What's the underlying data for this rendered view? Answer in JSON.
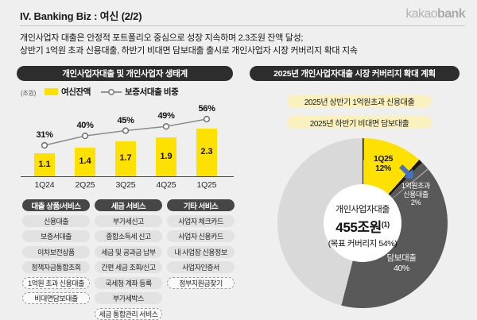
{
  "header": {
    "title": "IV. Banking Biz : 여신 (2/2)",
    "logo": {
      "kakao": "kakao",
      "bank": "bank"
    }
  },
  "intro": {
    "line1": "개인사업자 대출은 안정적 포트폴리오 중심으로 성장 지속하며 2.3조원 잔액 달성;",
    "line2": "상반기 1억원 초과 신용대출, 하반기 비대면 담보대출 출시로 개인사업자 시장 커버리지 확대 지속"
  },
  "left_panel": {
    "title": "개인사업자대출 및 개인사업자 생태계",
    "unit_label": "(조원)",
    "legend": {
      "bar": "여신잔액",
      "line": "보증서대출 비중"
    },
    "services": {
      "columns": [
        {
          "header": "대출 상품/서비스",
          "items": [
            {
              "label": "신용대출",
              "dashed": false
            },
            {
              "label": "보증서대출",
              "dashed": false
            },
            {
              "label": "이차보전상품",
              "dashed": false
            },
            {
              "label": "정책자금통합조회",
              "dashed": false
            },
            {
              "label": "1억원 초과 신용대출",
              "dashed": true
            },
            {
              "label": "비대면담보대출",
              "dashed": true
            }
          ]
        },
        {
          "header": "세금 서비스",
          "items": [
            {
              "label": "부가세신고",
              "dashed": false
            },
            {
              "label": "종합소득세 신고",
              "dashed": false
            },
            {
              "label": "세금 및 공과금 납부",
              "dashed": false
            },
            {
              "label": "간편 세금 조회/신고",
              "dashed": false
            },
            {
              "label": "국세청 계좌 등록",
              "dashed": false
            },
            {
              "label": "부가세박스",
              "dashed": false
            },
            {
              "label": "세금 통합관리 서비스",
              "dashed": true
            }
          ]
        },
        {
          "header": "기타 서비스",
          "items": [
            {
              "label": "사업자 체크카드",
              "dashed": false
            },
            {
              "label": "사업자 신용카드",
              "dashed": false
            },
            {
              "label": "내 사업장 신용정보",
              "dashed": false
            },
            {
              "label": "사업자인증서",
              "dashed": false
            },
            {
              "label": "정부지원금찾기",
              "dashed": true
            }
          ]
        }
      ]
    }
  },
  "right_panel": {
    "title": "2025년 개인사업자대출 시장 커버리지 확대 계획",
    "milestones": [
      "2025년 상반기 1억원초과 신용대출",
      "2025년 하반기 비대면 담보대출"
    ],
    "donut_center": {
      "line1": "개인사업자대출",
      "line2": "455조원",
      "sup": "(1)",
      "line3": "(목표 커버리지 54%)"
    },
    "labels": {
      "q_line1": "1Q25",
      "q_line2": "12%",
      "credit_line1": "1억원초과",
      "credit_line2": "신용대출",
      "credit_line3": "2%",
      "secured_line1": "담보대출",
      "secured_line2": "40%"
    }
  },
  "chart_data": [
    {
      "type": "bar",
      "title": "개인사업자대출 및 개인사업자 생태계",
      "categories": [
        "1Q24",
        "2Q25",
        "3Q25",
        "4Q25",
        "1Q25"
      ],
      "series": [
        {
          "name": "여신잔액",
          "type": "bar",
          "unit": "조원",
          "values": [
            1.1,
            1.4,
            1.7,
            1.9,
            2.3
          ]
        },
        {
          "name": "보증서대출 비중",
          "type": "line",
          "unit": "%",
          "values": [
            31,
            40,
            45,
            49,
            56
          ]
        }
      ],
      "xlabel": "",
      "ylabel": "(조원)",
      "ylim": [
        0,
        2.5
      ],
      "grid": false,
      "legend_position": "top"
    },
    {
      "type": "pie",
      "title": "2025년 개인사업자대출 시장 커버리지 확대 계획",
      "center_label": "개인사업자대출 455조원(1) (목표 커버리지 54%)",
      "segments": [
        {
          "label": "1Q25",
          "value": 12,
          "color": "#FFE100"
        },
        {
          "label": "1억원초과 신용대출",
          "value": 2,
          "color": "#595959"
        },
        {
          "label": "담보대출",
          "value": 40,
          "color": "#595959"
        },
        {
          "label": "",
          "value": 46,
          "color": "#D9D9D9"
        }
      ]
    }
  ],
  "colors": {
    "background": "#EFEFEF",
    "brand_yellow": "#FFE100",
    "pale_yellow": "#FAF1BE",
    "dark_pill": "#2D2D2D",
    "donut_dark": "#595959",
    "donut_light": "#D9D9D9",
    "arrow_blue": "#4472C4"
  }
}
